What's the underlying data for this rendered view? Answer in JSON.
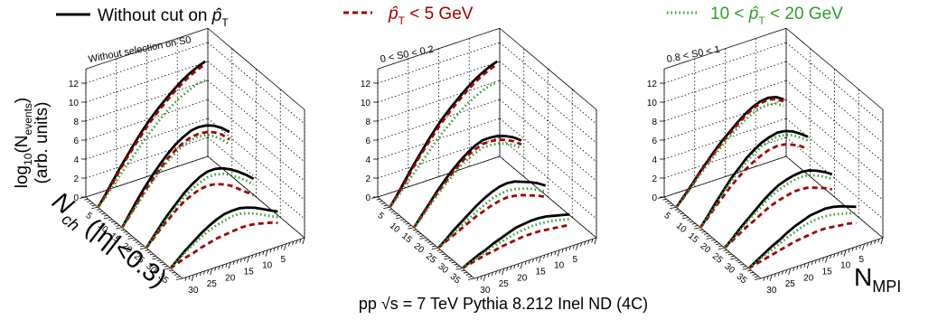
{
  "chart_data": {
    "type": "line",
    "title": "",
    "caption": "pp √s = 7 TeV Pythia 8.212 Inel ND (4C)",
    "legend": {
      "placement": "top",
      "entries": [
        {
          "label": "Without cut on p̂T",
          "color": "#000000",
          "style": "solid"
        },
        {
          "label": "p̂T < 5 GeV",
          "color": "#a00000",
          "style": "dashed"
        },
        {
          "label": "10 < p̂T < 20 GeV",
          "color": "#2ca02c",
          "style": "dotted"
        }
      ]
    },
    "axes": {
      "z_label": "log10(Nevents) (arb. units)",
      "z_range": [
        0,
        12
      ],
      "z_ticks": [
        "0",
        "2",
        "4",
        "6",
        "8",
        "10",
        "12"
      ],
      "depth_label": "Nch (|η|<0.3)",
      "depth_ticks": [
        "5",
        "10",
        "15",
        "20",
        "25",
        "30",
        "35"
      ],
      "x_label": "NMPI",
      "x_range": [
        0,
        33
      ],
      "x_ticks": [
        "5",
        "10",
        "15",
        "20",
        "25",
        "30"
      ]
    },
    "panels": [
      {
        "title": "Without selection on S0",
        "series": [
          {
            "name": "Without cut on p̂T",
            "nch": 5,
            "peak": 11.6,
            "y": [
              0,
              1.1,
              2.3,
              3.5,
              4.6,
              5.7,
              6.7,
              7.6,
              8.4,
              9.1,
              9.8,
              10.4,
              10.9,
              11.3,
              11.6
            ]
          },
          {
            "name": "p̂T < 5 GeV",
            "nch": 5,
            "peak": 11.3,
            "y": [
              0,
              1.0,
              2.1,
              3.3,
              4.4,
              5.4,
              6.4,
              7.3,
              8.1,
              8.8,
              9.5,
              10.1,
              10.6,
              11.0,
              11.3
            ]
          },
          {
            "name": "10 < p̂T < 20 GeV",
            "nch": 5,
            "peak": 9.6,
            "y": [
              0,
              0.8,
              1.7,
              2.7,
              3.6,
              4.5,
              5.4,
              6.2,
              7.0,
              7.7,
              8.3,
              8.8,
              9.2,
              9.5,
              9.6
            ]
          },
          {
            "name": "Without cut on p̂T",
            "nch": 15,
            "peak": 7.9,
            "y": [
              0,
              1.2,
              2.4,
              3.5,
              4.5,
              5.4,
              6.2,
              6.9,
              7.4,
              7.8,
              7.9,
              7.8,
              7.5,
              7.0,
              6.3
            ]
          },
          {
            "name": "p̂T < 5 GeV",
            "nch": 15,
            "peak": 7.2,
            "y": [
              0,
              1.0,
              2.1,
              3.1,
              4.0,
              4.9,
              5.7,
              6.3,
              6.8,
              7.1,
              7.2,
              7.1,
              6.8,
              6.3,
              5.5
            ]
          },
          {
            "name": "10 < p̂T < 20 GeV",
            "nch": 15,
            "peak": 6.9,
            "y": [
              0,
              0.9,
              1.9,
              2.9,
              3.8,
              4.7,
              5.4,
              6.0,
              6.5,
              6.8,
              6.9,
              6.8,
              6.4,
              5.8,
              5.0
            ]
          },
          {
            "name": "Without cut on p̂T",
            "nch": 25,
            "peak": 5.9,
            "y": [
              0,
              1.0,
              2.0,
              2.9,
              3.7,
              4.5,
              5.1,
              5.6,
              5.9,
              5.9,
              5.7,
              5.3,
              4.8,
              4.2,
              3.5
            ]
          },
          {
            "name": "p̂T < 5 GeV",
            "nch": 25,
            "peak": 4.4,
            "y": [
              0,
              0.8,
              1.6,
              2.3,
              3.0,
              3.6,
              4.0,
              4.3,
              4.4,
              4.3,
              4.0,
              3.6,
              3.0,
              2.4,
              1.8
            ]
          },
          {
            "name": "10 < p̂T < 20 GeV",
            "nch": 25,
            "peak": 5.3,
            "y": [
              0,
              0.9,
              1.8,
              2.6,
              3.4,
              4.1,
              4.6,
              5.0,
              5.3,
              5.3,
              5.1,
              4.7,
              4.2,
              3.6,
              2.9
            ]
          },
          {
            "name": "Without cut on p̂T",
            "nch": 35,
            "peak": 3.9,
            "y": [
              0,
              0.7,
              1.4,
              2.0,
              2.6,
              3.1,
              3.5,
              3.8,
              3.9,
              3.9,
              3.7,
              3.4,
              3.0,
              2.6,
              2.2
            ]
          },
          {
            "name": "p̂T < 5 GeV",
            "nch": 35,
            "peak": 1.8,
            "y": [
              0,
              0.3,
              0.6,
              0.8,
              1.1,
              1.3,
              1.5,
              1.6,
              1.7,
              1.8,
              1.8,
              1.7,
              1.5,
              1.3,
              1.0
            ]
          },
          {
            "name": "10 < p̂T < 20 GeV",
            "nch": 35,
            "peak": 3.3,
            "y": [
              0,
              0.6,
              1.2,
              1.7,
              2.2,
              2.6,
              2.9,
              3.1,
              3.3,
              3.3,
              3.1,
              2.8,
              2.4,
              2.0,
              1.6
            ]
          }
        ]
      },
      {
        "title": "0 < S0 < 0.2",
        "series": [
          {
            "name": "Without cut on p̂T",
            "nch": 5,
            "peak": 11.6,
            "y": [
              0,
              1.1,
              2.3,
              3.5,
              4.6,
              5.7,
              6.7,
              7.6,
              8.4,
              9.1,
              9.8,
              10.4,
              10.9,
              11.3,
              11.6
            ]
          },
          {
            "name": "p̂T < 5 GeV",
            "nch": 5,
            "peak": 11.3,
            "y": [
              0,
              1.0,
              2.1,
              3.3,
              4.4,
              5.4,
              6.4,
              7.3,
              8.1,
              8.8,
              9.5,
              10.1,
              10.6,
              11.0,
              11.3
            ]
          },
          {
            "name": "10 < p̂T < 20 GeV",
            "nch": 5,
            "peak": 9.4,
            "y": [
              0,
              0.8,
              1.7,
              2.6,
              3.5,
              4.4,
              5.3,
              6.1,
              6.8,
              7.5,
              8.1,
              8.6,
              9.0,
              9.3,
              9.4
            ]
          },
          {
            "name": "Without cut on p̂T",
            "nch": 15,
            "peak": 6.8,
            "y": [
              0,
              1.0,
              2.0,
              3.0,
              3.9,
              4.7,
              5.4,
              6.0,
              6.5,
              6.8,
              6.8,
              6.7,
              6.4,
              6.0,
              5.4
            ]
          },
          {
            "name": "p̂T < 5 GeV",
            "nch": 15,
            "peak": 6.4,
            "y": [
              0,
              0.9,
              1.9,
              2.8,
              3.6,
              4.4,
              5.1,
              5.7,
              6.1,
              6.4,
              6.4,
              6.3,
              6.0,
              5.6,
              5.0
            ]
          },
          {
            "name": "10 < p̂T < 20 GeV",
            "nch": 15,
            "peak": 6.0,
            "y": [
              0,
              0.8,
              1.7,
              2.6,
              3.4,
              4.1,
              4.8,
              5.3,
              5.7,
              6.0,
              6.0,
              5.9,
              5.6,
              5.2,
              4.6
            ]
          },
          {
            "name": "Without cut on p̂T",
            "nch": 25,
            "peak": 4.4,
            "y": [
              0,
              0.6,
              1.3,
              1.9,
              2.5,
              3.1,
              3.6,
              4.0,
              4.3,
              4.4,
              4.3,
              4.0,
              3.7,
              3.3,
              2.8
            ]
          },
          {
            "name": "p̂T < 5 GeV",
            "nch": 25,
            "peak": 2.9,
            "y": [
              0,
              0.4,
              0.8,
              1.2,
              1.6,
              2.0,
              2.3,
              2.6,
              2.8,
              2.9,
              2.8,
              2.6,
              2.3,
              2.0,
              1.6
            ]
          },
          {
            "name": "10 < p̂T < 20 GeV",
            "nch": 25,
            "peak": 3.6,
            "y": [
              0,
              0.5,
              1.0,
              1.5,
              2.0,
              2.5,
              2.9,
              3.3,
              3.5,
              3.6,
              3.5,
              3.3,
              3.0,
              2.6,
              2.2
            ]
          },
          {
            "name": "Without cut on p̂T",
            "nch": 35,
            "peak": 2.6,
            "y": [
              0,
              0.4,
              0.8,
              1.1,
              1.5,
              1.8,
              2.1,
              2.4,
              2.5,
              2.6,
              2.6,
              2.5,
              2.3,
              2.1,
              1.9
            ]
          },
          {
            "name": "p̂T < 5 GeV",
            "nch": 35,
            "peak": 1.2,
            "y": [
              0,
              0.2,
              0.4,
              0.6,
              0.7,
              0.9,
              1.0,
              1.1,
              1.2,
              1.2,
              1.2,
              1.1,
              1.0,
              0.9,
              0.8
            ]
          },
          {
            "name": "10 < p̂T < 20 GeV",
            "nch": 35,
            "peak": 2.0,
            "y": [
              0,
              0.3,
              0.6,
              0.9,
              1.2,
              1.4,
              1.6,
              1.8,
              1.9,
              2.0,
              2.0,
              1.9,
              1.8,
              1.6,
              1.4
            ]
          }
        ]
      },
      {
        "title": "0.8 < S0 < 1",
        "series": [
          {
            "name": "Without cut on p̂T",
            "nch": 5,
            "peak": 8.3,
            "y": [
              0,
              0.9,
              1.8,
              2.8,
              3.7,
              4.6,
              5.4,
              6.1,
              6.8,
              7.4,
              7.9,
              8.2,
              8.3,
              8.1,
              7.6
            ]
          },
          {
            "name": "p̂T < 5 GeV",
            "nch": 5,
            "peak": 8.1,
            "y": [
              0,
              0.8,
              1.7,
              2.7,
              3.6,
              4.4,
              5.2,
              5.9,
              6.6,
              7.2,
              7.7,
              8.0,
              8.1,
              7.9,
              7.4
            ]
          },
          {
            "name": "10 < p̂T < 20 GeV",
            "nch": 5,
            "peak": 7.6,
            "y": [
              0,
              0.8,
              1.6,
              2.5,
              3.3,
              4.1,
              4.9,
              5.6,
              6.2,
              6.8,
              7.2,
              7.5,
              7.6,
              7.4,
              6.9
            ]
          },
          {
            "name": "Without cut on p̂T",
            "nch": 15,
            "peak": 7.3,
            "y": [
              0,
              1.0,
              2.1,
              3.1,
              4.1,
              4.9,
              5.7,
              6.3,
              6.8,
              7.1,
              7.3,
              7.2,
              6.9,
              6.4,
              5.8
            ]
          },
          {
            "name": "p̂T < 5 GeV",
            "nch": 15,
            "peak": 5.9,
            "y": [
              0,
              0.8,
              1.7,
              2.5,
              3.3,
              4.0,
              4.6,
              5.1,
              5.5,
              5.8,
              5.9,
              5.8,
              5.5,
              5.1,
              4.5
            ]
          },
          {
            "name": "10 < p̂T < 20 GeV",
            "nch": 15,
            "peak": 6.9,
            "y": [
              0,
              0.9,
              1.9,
              2.9,
              3.8,
              4.6,
              5.3,
              5.9,
              6.4,
              6.7,
              6.9,
              6.8,
              6.5,
              6.0,
              5.4
            ]
          },
          {
            "name": "Without cut on p̂T",
            "nch": 25,
            "peak": 5.3,
            "y": [
              0,
              0.7,
              1.5,
              2.2,
              2.9,
              3.6,
              4.2,
              4.7,
              5.0,
              5.2,
              5.3,
              5.2,
              4.9,
              4.5,
              4.0
            ]
          },
          {
            "name": "p̂T < 5 GeV",
            "nch": 25,
            "peak": 3.5,
            "y": [
              0,
              0.5,
              1.0,
              1.5,
              1.9,
              2.4,
              2.8,
              3.1,
              3.3,
              3.5,
              3.5,
              3.4,
              3.1,
              2.8,
              2.4
            ]
          },
          {
            "name": "10 < p̂T < 20 GeV",
            "nch": 25,
            "peak": 4.8,
            "y": [
              0,
              0.6,
              1.3,
              2.0,
              2.6,
              3.2,
              3.8,
              4.2,
              4.5,
              4.7,
              4.8,
              4.7,
              4.4,
              4.0,
              3.5
            ]
          },
          {
            "name": "Without cut on p̂T",
            "nch": 35,
            "peak": 3.6,
            "y": [
              0,
              0.5,
              1.0,
              1.5,
              1.9,
              2.4,
              2.8,
              3.1,
              3.4,
              3.5,
              3.6,
              3.5,
              3.3,
              3.0,
              2.7
            ]
          },
          {
            "name": "p̂T < 5 GeV",
            "nch": 35,
            "peak": 1.5,
            "y": [
              0,
              0.2,
              0.4,
              0.6,
              0.8,
              1.0,
              1.2,
              1.3,
              1.4,
              1.5,
              1.5,
              1.4,
              1.3,
              1.2,
              1.0
            ]
          },
          {
            "name": "10 < p̂T < 20 GeV",
            "nch": 35,
            "peak": 2.8,
            "y": [
              0,
              0.4,
              0.8,
              1.1,
              1.5,
              1.9,
              2.2,
              2.5,
              2.7,
              2.8,
              2.8,
              2.7,
              2.5,
              2.3,
              2.0
            ]
          }
        ]
      }
    ]
  }
}
